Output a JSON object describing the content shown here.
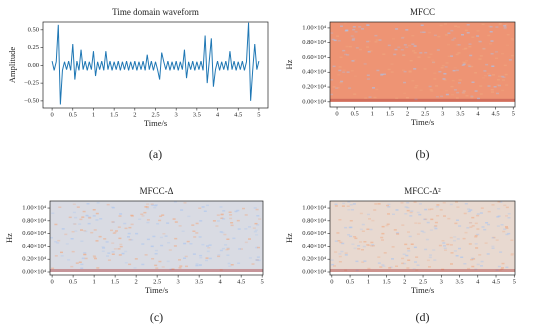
{
  "chart_data": [
    {
      "type": "line",
      "title": "Time domain waveform",
      "xlabel": "Time/s",
      "ylabel": "Amplitude",
      "caption": "(a)",
      "color": "#1f77b4",
      "x": [
        0,
        0.05,
        0.1,
        0.15,
        0.2,
        0.25,
        0.3,
        0.35,
        0.4,
        0.45,
        0.5,
        0.55,
        0.6,
        0.65,
        0.7,
        0.75,
        0.8,
        0.85,
        0.9,
        0.95,
        1,
        1.05,
        1.1,
        1.15,
        1.2,
        1.25,
        1.3,
        1.35,
        1.4,
        1.45,
        1.5,
        1.55,
        1.6,
        1.65,
        1.7,
        1.75,
        1.8,
        1.85,
        1.9,
        1.95,
        2,
        2.05,
        2.1,
        2.15,
        2.2,
        2.25,
        2.3,
        2.35,
        2.4,
        2.45,
        2.5,
        2.55,
        2.6,
        2.65,
        2.7,
        2.75,
        2.8,
        2.85,
        2.9,
        2.95,
        3,
        3.05,
        3.1,
        3.15,
        3.2,
        3.25,
        3.3,
        3.35,
        3.4,
        3.45,
        3.5,
        3.55,
        3.6,
        3.65,
        3.7,
        3.75,
        3.8,
        3.85,
        3.9,
        3.95,
        4,
        4.05,
        4.1,
        4.15,
        4.2,
        4.25,
        4.3,
        4.35,
        4.4,
        4.45,
        4.5,
        4.55,
        4.6,
        4.65,
        4.7,
        4.75,
        4.8,
        4.85,
        4.9,
        4.95,
        5
      ],
      "values": [
        0.06,
        -0.07,
        0.05,
        0.57,
        -0.55,
        -0.07,
        0.05,
        -0.06,
        0.06,
        -0.07,
        0.3,
        -0.2,
        0.06,
        -0.07,
        0.22,
        -0.06,
        0.06,
        -0.07,
        0.05,
        -0.06,
        0.2,
        -0.15,
        0.05,
        -0.06,
        0.06,
        -0.07,
        0.2,
        -0.06,
        0.06,
        -0.07,
        0.05,
        -0.06,
        0.06,
        -0.07,
        0.05,
        -0.06,
        0.06,
        -0.07,
        0.05,
        -0.06,
        0.06,
        -0.07,
        0.05,
        -0.06,
        0.06,
        -0.07,
        0.15,
        -0.06,
        0.06,
        -0.07,
        0.05,
        -0.06,
        -0.2,
        0.18,
        0.05,
        -0.06,
        0.06,
        -0.07,
        0.05,
        -0.06,
        0.06,
        -0.07,
        0.05,
        -0.06,
        0.22,
        -0.18,
        0.05,
        -0.06,
        0.06,
        -0.07,
        0.05,
        -0.06,
        0.06,
        -0.07,
        0.42,
        -0.25,
        0.06,
        0.38,
        -0.3,
        -0.06,
        0.06,
        -0.07,
        0.05,
        -0.06,
        0.06,
        -0.07,
        0.2,
        -0.06,
        0.06,
        -0.07,
        0.05,
        -0.06,
        0.06,
        -0.07,
        0.05,
        0.6,
        -0.5,
        -0.07,
        0.3,
        -0.06,
        0.06
      ],
      "xlim": [
        -0.22,
        5.22
      ],
      "ylim": [
        -0.6,
        0.61
      ],
      "xticks": [
        0,
        0.5,
        1,
        1.5,
        2,
        2.5,
        3,
        3.5,
        4,
        4.5,
        5
      ],
      "yticks": [
        {
          "value": -0.5,
          "label": "−0.50"
        },
        {
          "value": -0.25,
          "label": "−0.25"
        },
        {
          "value": 0,
          "label": "0.00"
        },
        {
          "value": 0.25,
          "label": "0.25"
        },
        {
          "value": 0.5,
          "label": "0.50"
        }
      ]
    },
    {
      "type": "heatmap",
      "title": "MFCC",
      "xlabel": "Time/s",
      "ylabel": "Hz",
      "caption": "(b)",
      "color": "#ee9474",
      "xlim": [
        -0.2,
        5.05
      ],
      "ylim": [
        -700,
        10800
      ],
      "xticks": [
        0,
        0.5,
        1,
        1.5,
        2,
        2.5,
        3,
        3.5,
        4,
        4.5,
        5
      ],
      "yticks": [
        {
          "value": 0,
          "label": "0.00×10⁴"
        },
        {
          "value": 2000,
          "label": "0.20×10⁴"
        },
        {
          "value": 4000,
          "label": "0.40×10⁴"
        },
        {
          "value": 6000,
          "label": "0.60×10⁴"
        },
        {
          "value": 8000,
          "label": "0.80×10⁴"
        },
        {
          "value": 10000,
          "label": "1.00×10⁴"
        }
      ]
    },
    {
      "type": "heatmap",
      "title": "MFCC-Δ",
      "xlabel": "Time/s",
      "ylabel": "Hz",
      "caption": "(c)",
      "color": "#d9dbe3",
      "xlim": [
        -0.05,
        5.02
      ],
      "ylim": [
        -470,
        11100
      ],
      "xticks": [
        0,
        0.5,
        1,
        1.5,
        2,
        2.5,
        3,
        3.5,
        4,
        4.5,
        5
      ],
      "yticks": [
        {
          "value": 0,
          "label": "0.00×10⁴"
        },
        {
          "value": 2000,
          "label": "0.20×10⁴"
        },
        {
          "value": 4000,
          "label": "0.40×10⁴"
        },
        {
          "value": 6000,
          "label": "0.60×10⁴"
        },
        {
          "value": 8000,
          "label": "0.80×10⁴"
        },
        {
          "value": 10000,
          "label": "1.00×10⁴"
        }
      ]
    },
    {
      "type": "heatmap",
      "title": "MFCC-Δ²",
      "xlabel": "Time/s",
      "ylabel": "Hz",
      "caption": "(d)",
      "color": "#e8d9d0",
      "xlim": [
        -0.05,
        5.02
      ],
      "ylim": [
        -470,
        11100
      ],
      "xticks": [
        0,
        0.5,
        1,
        1.5,
        2,
        2.5,
        3,
        3.5,
        4,
        4.5,
        5
      ],
      "yticks": [
        {
          "value": 0,
          "label": "0.00×10⁴"
        },
        {
          "value": 2000,
          "label": "0.20×10⁴"
        },
        {
          "value": 4000,
          "label": "0.40×10⁴"
        },
        {
          "value": 6000,
          "label": "0.60×10⁴"
        },
        {
          "value": 8000,
          "label": "0.80×10⁴"
        },
        {
          "value": 10000,
          "label": "1.00×10⁴"
        }
      ]
    }
  ]
}
